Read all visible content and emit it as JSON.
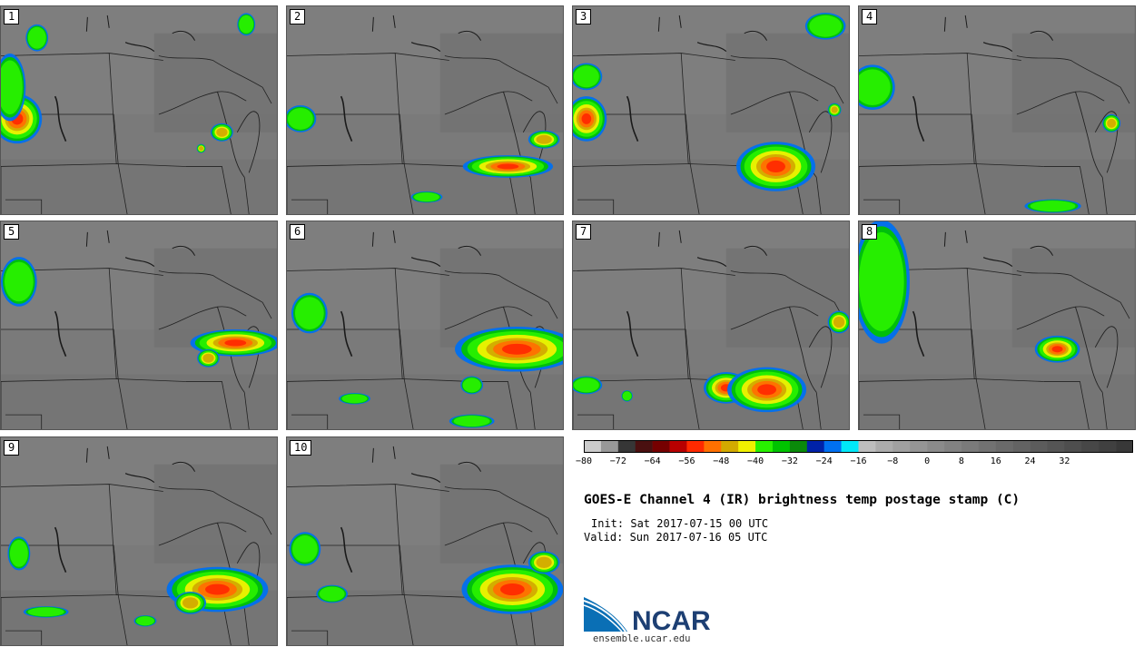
{
  "panels": [
    {
      "label": "1"
    },
    {
      "label": "2"
    },
    {
      "label": "3"
    },
    {
      "label": "4"
    },
    {
      "label": "5"
    },
    {
      "label": "6"
    },
    {
      "label": "7"
    },
    {
      "label": "8"
    },
    {
      "label": "9"
    },
    {
      "label": "10"
    }
  ],
  "colorbar": {
    "colors": [
      "#cbcbcb",
      "#989898",
      "#363636",
      "#4a1010",
      "#760000",
      "#b80000",
      "#ff2a00",
      "#ff7000",
      "#d2aa00",
      "#f0f000",
      "#28f000",
      "#00c300",
      "#0a8a0a",
      "#0022a8",
      "#0070f0",
      "#00e8f8",
      "#bdbdbd",
      "#acacac",
      "#a0a0a0",
      "#959595",
      "#8b8b8b",
      "#828282",
      "#7a7a7a",
      "#727272",
      "#6a6a6a",
      "#636363",
      "#5c5c5c",
      "#555555",
      "#4e4e4e",
      "#474747",
      "#404040",
      "#383838"
    ],
    "tick_labels": [
      "−80",
      "−72",
      "−64",
      "−56",
      "−48",
      "−40",
      "−32",
      "−24",
      "−16",
      "−8",
      "0",
      "8",
      "16",
      "24",
      "32"
    ]
  },
  "title": "GOES-E Channel 4 (IR) brightness temp postage stamp (C)",
  "init": "Init: Sat 2017-07-15 00 UTC",
  "valid": "Valid: Sun 2017-07-16 05 UTC",
  "logo": {
    "text": "NCAR",
    "url": "ensemble.ucar.edu"
  }
}
